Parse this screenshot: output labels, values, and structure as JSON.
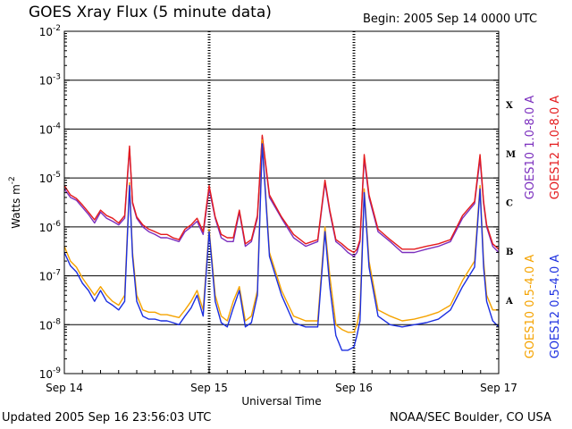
{
  "header": {
    "title": "GOES Xray Flux (5 minute data)",
    "begin": "Begin:  2005 Sep 14 0000 UTC"
  },
  "footer": {
    "updated": "Updated 2005 Sep 16 23:56:03 UTC",
    "credit": "NOAA/SEC Boulder, CO USA"
  },
  "chart_data": {
    "type": "line",
    "title": "GOES Xray Flux (5 minute data)",
    "xlabel": "Universal Time",
    "ylabel": "Watts m",
    "ylabel_exponent": "-2",
    "y_scale": "log",
    "ylim": [
      1e-09,
      0.01
    ],
    "y_ticks": [
      {
        "base": "10",
        "exp": "-2",
        "value": 0.01
      },
      {
        "base": "10",
        "exp": "-3",
        "value": 0.001
      },
      {
        "base": "10",
        "exp": "-4",
        "value": 0.0001
      },
      {
        "base": "10",
        "exp": "-5",
        "value": 1e-05
      },
      {
        "base": "10",
        "exp": "-6",
        "value": 1e-06
      },
      {
        "base": "10",
        "exp": "-7",
        "value": 1e-07
      },
      {
        "base": "10",
        "exp": "-8",
        "value": 1e-08
      },
      {
        "base": "10",
        "exp": "-9",
        "value": 1e-09
      }
    ],
    "xlim": [
      0,
      72
    ],
    "x_unit": "hours since 2005 Sep 14 0000 UTC",
    "x_ticks": [
      {
        "label": "Sep 14",
        "value": 0
      },
      {
        "label": "Sep 15",
        "value": 24
      },
      {
        "label": "Sep 16",
        "value": 48
      },
      {
        "label": "Sep 17",
        "value": 72
      }
    ],
    "flare_classes": [
      {
        "label": "X",
        "min": 0.0001
      },
      {
        "label": "M",
        "min": 1e-05
      },
      {
        "label": "C",
        "min": 1e-06
      },
      {
        "label": "B",
        "min": 1e-07
      },
      {
        "label": "A",
        "min": 1e-08
      }
    ],
    "series": [
      {
        "name": "GOES10 1.0-8.0 A",
        "color": "#7b2fbe",
        "x": [
          0,
          1,
          2,
          3,
          4,
          5,
          6,
          7,
          8,
          9,
          10,
          10.8,
          11.3,
          12,
          13,
          14,
          15,
          16,
          17,
          18,
          19,
          20,
          21,
          22,
          23,
          24,
          25,
          26,
          27,
          28,
          29,
          30,
          31,
          32,
          32.8,
          34,
          36,
          38,
          40,
          42,
          43.2,
          44,
          45,
          46,
          47,
          48,
          48.5,
          49,
          49.7,
          50.5,
          52,
          54,
          56,
          58,
          60,
          62,
          64,
          66,
          68,
          68.9,
          69.5,
          70,
          71,
          72
        ],
        "values": [
          6e-06,
          4e-06,
          3.5e-06,
          2.5e-06,
          1.8e-06,
          1.2e-06,
          2e-06,
          1.5e-06,
          1.3e-06,
          1.1e-06,
          1.5e-06,
          4e-05,
          3e-06,
          1.5e-06,
          1e-06,
          8e-07,
          7e-07,
          6e-07,
          6e-07,
          5.5e-07,
          5e-07,
          8e-07,
          1e-06,
          1.3e-06,
          7e-07,
          6e-06,
          1.5e-06,
          6e-07,
          5e-07,
          5e-07,
          2e-06,
          4e-07,
          5e-07,
          1.5e-06,
          7e-05,
          4e-06,
          1.5e-06,
          6e-07,
          4e-07,
          5e-07,
          8e-06,
          2e-06,
          5e-07,
          4e-07,
          3e-07,
          2.5e-07,
          3e-07,
          5e-07,
          2.5e-05,
          4e-06,
          8e-07,
          5e-07,
          3e-07,
          3e-07,
          3.5e-07,
          4e-07,
          5e-07,
          1.5e-06,
          3e-06,
          2.5e-05,
          3e-06,
          1e-06,
          4e-07,
          3e-07
        ]
      },
      {
        "name": "GOES12 1.0-8.0 A",
        "color": "#e41a1c",
        "x": [
          0,
          1,
          2,
          3,
          4,
          5,
          6,
          7,
          8,
          9,
          10,
          10.8,
          11.3,
          12,
          13,
          14,
          15,
          16,
          17,
          18,
          19,
          20,
          21,
          22,
          23,
          24,
          25,
          26,
          27,
          28,
          29,
          30,
          31,
          32,
          32.8,
          34,
          36,
          38,
          40,
          42,
          43.2,
          44,
          45,
          46,
          47,
          48,
          48.5,
          49,
          49.7,
          50.5,
          52,
          54,
          56,
          58,
          60,
          62,
          64,
          66,
          68,
          68.9,
          69.5,
          70,
          71,
          72
        ],
        "values": [
          7e-06,
          4.5e-06,
          3.8e-06,
          2.8e-06,
          2e-06,
          1.4e-06,
          2.2e-06,
          1.7e-06,
          1.5e-06,
          1.2e-06,
          1.7e-06,
          4.5e-05,
          3.2e-06,
          1.6e-06,
          1.1e-06,
          9e-07,
          8e-07,
          7e-07,
          7e-07,
          6e-07,
          5.5e-07,
          9e-07,
          1.1e-06,
          1.5e-06,
          8e-07,
          7e-06,
          1.6e-06,
          7e-07,
          6e-07,
          6e-07,
          2.2e-06,
          4.5e-07,
          5.5e-07,
          1.7e-06,
          7.5e-05,
          4.5e-06,
          1.6e-06,
          7e-07,
          4.5e-07,
          5.5e-07,
          9e-06,
          2.2e-06,
          5.5e-07,
          4.5e-07,
          3.5e-07,
          3e-07,
          3.5e-07,
          5.5e-07,
          3e-05,
          4.5e-06,
          9e-07,
          5.5e-07,
          3.5e-07,
          3.5e-07,
          4e-07,
          4.5e-07,
          5.5e-07,
          1.7e-06,
          3.3e-06,
          3e-05,
          3.3e-06,
          1.1e-06,
          4.5e-07,
          3.5e-07
        ]
      },
      {
        "name": "GOES10 0.5-4.0 A",
        "color": "#f5a300",
        "x": [
          0,
          1,
          2,
          3,
          4,
          5,
          6,
          7,
          8,
          9,
          10,
          10.8,
          11.3,
          12,
          13,
          14,
          15,
          16,
          17,
          18,
          19,
          20,
          21,
          22,
          23,
          24,
          25,
          26,
          27,
          28,
          29,
          30,
          31,
          32,
          32.8,
          34,
          36,
          38,
          40,
          42,
          43.2,
          44,
          45,
          46,
          47,
          48,
          48.5,
          49,
          49.7,
          50.5,
          52,
          54,
          56,
          58,
          60,
          62,
          64,
          66,
          68,
          68.9,
          69.5,
          70,
          71,
          72
        ],
        "values": [
          4e-07,
          2e-07,
          1.5e-07,
          9e-08,
          6e-08,
          4e-08,
          6e-08,
          4e-08,
          3e-08,
          2.5e-08,
          4e-08,
          8e-06,
          3e-07,
          4e-08,
          2e-08,
          1.8e-08,
          1.8e-08,
          1.6e-08,
          1.6e-08,
          1.5e-08,
          1.4e-08,
          2e-08,
          3e-08,
          5e-08,
          2e-08,
          9e-07,
          4e-08,
          1.5e-08,
          1.2e-08,
          3e-08,
          6e-08,
          1.2e-08,
          1.5e-08,
          5e-08,
          6e-05,
          3e-07,
          5e-08,
          1.5e-08,
          1.2e-08,
          1.2e-08,
          1e-06,
          1e-07,
          1e-08,
          8e-09,
          7e-09,
          7e-09,
          1e-08,
          2e-08,
          6e-06,
          2e-07,
          2e-08,
          1.5e-08,
          1.2e-08,
          1.3e-08,
          1.5e-08,
          1.8e-08,
          2.5e-08,
          8e-08,
          2e-07,
          7e-06,
          2e-07,
          4e-08,
          2e-08,
          2e-08
        ]
      },
      {
        "name": "GOES12 0.5-4.0 A",
        "color": "#1c2fe0",
        "x": [
          0,
          1,
          2,
          3,
          4,
          5,
          6,
          7,
          8,
          9,
          10,
          10.8,
          11.3,
          12,
          13,
          14,
          15,
          16,
          17,
          18,
          19,
          20,
          21,
          22,
          23,
          24,
          25,
          26,
          27,
          28,
          29,
          30,
          31,
          32,
          32.8,
          34,
          36,
          38,
          40,
          42,
          43.2,
          44,
          45,
          46,
          47,
          48,
          48.5,
          49,
          49.7,
          50.5,
          52,
          54,
          56,
          58,
          60,
          62,
          64,
          66,
          68,
          68.9,
          69.5,
          70,
          71,
          72
        ],
        "values": [
          3e-07,
          1.6e-07,
          1.2e-07,
          7e-08,
          5e-08,
          3e-08,
          5e-08,
          3e-08,
          2.5e-08,
          2e-08,
          3e-08,
          7e-06,
          2.5e-07,
          3e-08,
          1.5e-08,
          1.3e-08,
          1.3e-08,
          1.2e-08,
          1.2e-08,
          1.1e-08,
          1e-08,
          1.5e-08,
          2.2e-08,
          4e-08,
          1.5e-08,
          8e-07,
          3e-08,
          1.1e-08,
          9e-09,
          2.2e-08,
          5e-08,
          9e-09,
          1.1e-08,
          4e-08,
          5e-05,
          2.5e-07,
          4e-08,
          1.1e-08,
          9e-09,
          9e-09,
          8e-07,
          6e-08,
          6e-09,
          3e-09,
          3e-09,
          3.5e-09,
          6e-09,
          1.2e-08,
          5e-06,
          1.5e-07,
          1.5e-08,
          1e-08,
          9e-09,
          1e-08,
          1.1e-08,
          1.3e-08,
          2e-08,
          6e-08,
          1.5e-07,
          6e-06,
          1.5e-07,
          3e-08,
          1.2e-08,
          9e-09
        ]
      }
    ],
    "legend": [
      {
        "label": "GOES10 1.0-8.0 A",
        "color": "#7b2fbe"
      },
      {
        "label": "GOES12 1.0-8.0 A",
        "color": "#e41a1c"
      },
      {
        "label": "GOES10 0.5-4.0 A",
        "color": "#f5a300"
      },
      {
        "label": "GOES12 0.5-4.0 A",
        "color": "#1c2fe0"
      }
    ]
  }
}
